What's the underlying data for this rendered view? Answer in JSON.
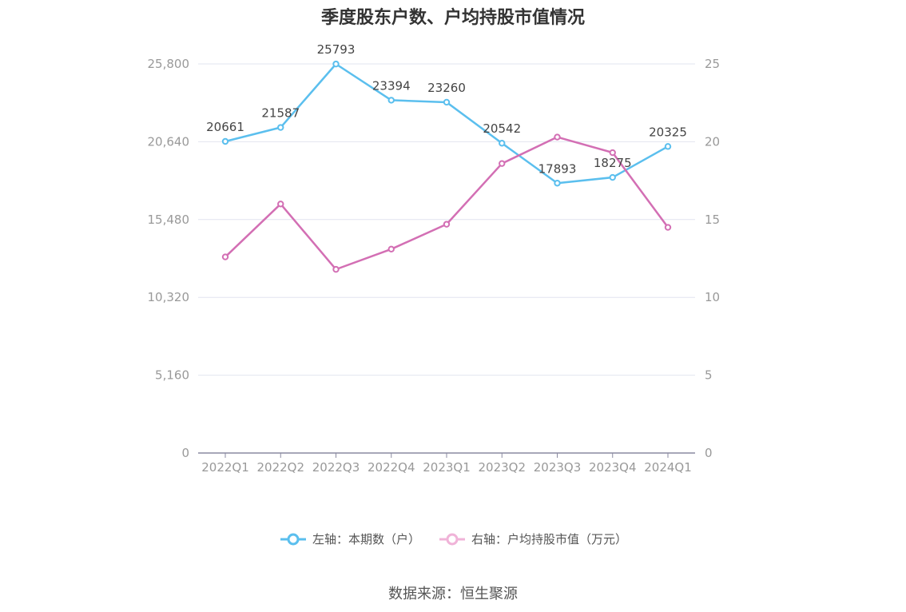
{
  "chart_data": {
    "type": "line",
    "title": "季度股东户数、户均持股市值情况",
    "categories": [
      "2022Q1",
      "2022Q2",
      "2022Q3",
      "2022Q4",
      "2023Q1",
      "2023Q2",
      "2023Q3",
      "2023Q4",
      "2024Q1"
    ],
    "y_left": {
      "ticks": [
        "0",
        "5,160",
        "10,320",
        "15,480",
        "20,640",
        "25,800"
      ],
      "ylim": [
        0,
        25800
      ]
    },
    "y_right": {
      "ticks": [
        "0",
        "5",
        "10",
        "15",
        "20",
        "25"
      ],
      "ylim": [
        0,
        25
      ]
    },
    "series": [
      {
        "name": "左轴：本期数（户）",
        "axis": "left",
        "color": "#5bbfee",
        "values": [
          20661,
          21587,
          25793,
          23394,
          23260,
          20542,
          17893,
          18275,
          20325
        ],
        "labels": [
          "20661",
          "21587",
          "25793",
          "23394",
          "23260",
          "20542",
          "17893",
          "18275",
          "20325"
        ]
      },
      {
        "name": "右轴：户均持股市值（万元）",
        "axis": "right",
        "color": "#d36fb4",
        "values": [
          12.6,
          16.0,
          11.8,
          13.1,
          14.7,
          18.6,
          20.3,
          19.3,
          14.5
        ]
      }
    ],
    "grid": true,
    "legend": "bottom-center"
  },
  "source": "数据来源：恒生聚源"
}
